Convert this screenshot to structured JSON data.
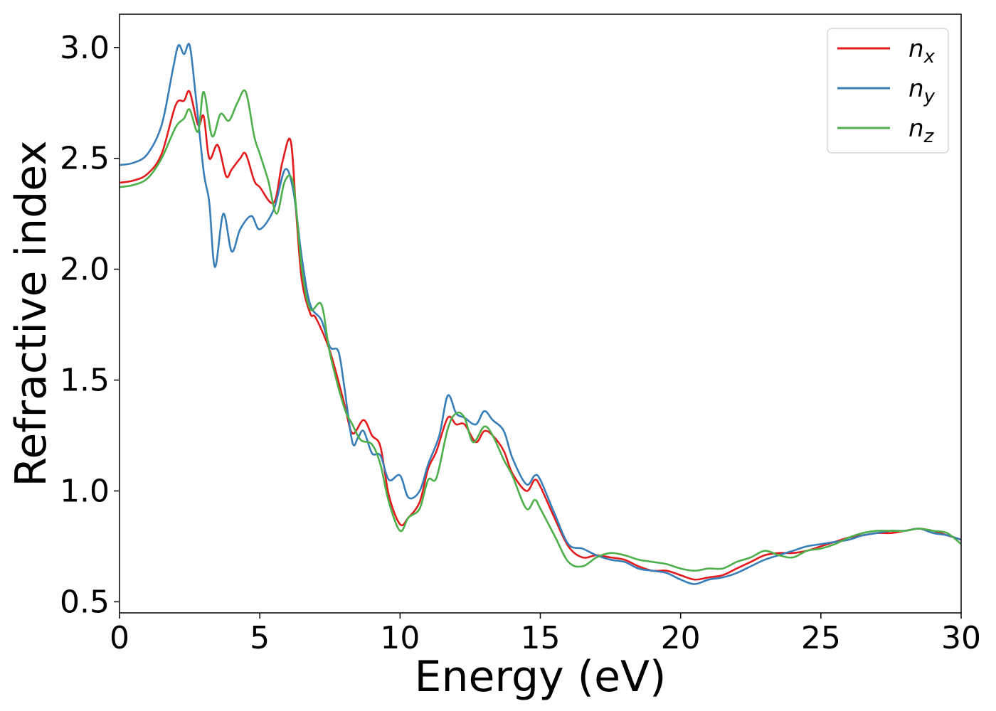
{
  "chart_data": {
    "type": "line",
    "xlabel": "Energy (eV)",
    "ylabel": "Refractive index",
    "xlim": [
      0,
      30
    ],
    "ylim": [
      0.45,
      3.15
    ],
    "xticks": [
      "0",
      "5",
      "10",
      "15",
      "20",
      "25",
      "30"
    ],
    "yticks": [
      "0.5",
      "1.0",
      "1.5",
      "2.0",
      "2.5",
      "3.0"
    ],
    "grid": false,
    "legend_position": "top-right",
    "series": [
      {
        "name": "n",
        "subscript": "x",
        "color": "#e41a1c",
        "points": [
          [
            0,
            2.39
          ],
          [
            0.5,
            2.4
          ],
          [
            1.0,
            2.43
          ],
          [
            1.5,
            2.52
          ],
          [
            2.0,
            2.74
          ],
          [
            2.3,
            2.76
          ],
          [
            2.5,
            2.8
          ],
          [
            2.8,
            2.65
          ],
          [
            3.0,
            2.69
          ],
          [
            3.2,
            2.5
          ],
          [
            3.5,
            2.56
          ],
          [
            3.8,
            2.42
          ],
          [
            4.0,
            2.45
          ],
          [
            4.3,
            2.5
          ],
          [
            4.5,
            2.52
          ],
          [
            4.8,
            2.4
          ],
          [
            5.0,
            2.37
          ],
          [
            5.5,
            2.3
          ],
          [
            5.8,
            2.48
          ],
          [
            6.1,
            2.58
          ],
          [
            6.3,
            2.25
          ],
          [
            6.5,
            1.95
          ],
          [
            6.8,
            1.8
          ],
          [
            7.0,
            1.78
          ],
          [
            7.5,
            1.63
          ],
          [
            8.0,
            1.4
          ],
          [
            8.3,
            1.26
          ],
          [
            8.7,
            1.32
          ],
          [
            9.0,
            1.25
          ],
          [
            9.3,
            1.2
          ],
          [
            9.6,
            0.98
          ],
          [
            10.0,
            0.85
          ],
          [
            10.3,
            0.88
          ],
          [
            10.7,
            0.95
          ],
          [
            11.0,
            1.1
          ],
          [
            11.3,
            1.18
          ],
          [
            11.7,
            1.33
          ],
          [
            12.0,
            1.3
          ],
          [
            12.3,
            1.3
          ],
          [
            12.7,
            1.22
          ],
          [
            13.0,
            1.27
          ],
          [
            13.3,
            1.25
          ],
          [
            13.7,
            1.18
          ],
          [
            14.0,
            1.08
          ],
          [
            14.5,
            1.0
          ],
          [
            14.8,
            1.05
          ],
          [
            15.0,
            1.02
          ],
          [
            15.5,
            0.88
          ],
          [
            16.0,
            0.75
          ],
          [
            16.5,
            0.7
          ],
          [
            17.0,
            0.71
          ],
          [
            17.5,
            0.7
          ],
          [
            18.0,
            0.69
          ],
          [
            18.5,
            0.66
          ],
          [
            19.0,
            0.64
          ],
          [
            19.5,
            0.64
          ],
          [
            20.0,
            0.62
          ],
          [
            20.5,
            0.6
          ],
          [
            21.0,
            0.61
          ],
          [
            21.5,
            0.62
          ],
          [
            22.0,
            0.65
          ],
          [
            22.5,
            0.68
          ],
          [
            23.0,
            0.71
          ],
          [
            23.5,
            0.72
          ],
          [
            24.0,
            0.72
          ],
          [
            24.5,
            0.73
          ],
          [
            25.0,
            0.75
          ],
          [
            25.5,
            0.77
          ],
          [
            26.0,
            0.79
          ],
          [
            26.5,
            0.8
          ],
          [
            27.0,
            0.81
          ],
          [
            27.5,
            0.81
          ],
          [
            28.0,
            0.82
          ],
          [
            28.5,
            0.83
          ],
          [
            29.0,
            0.82
          ],
          [
            29.5,
            0.8
          ],
          [
            30.0,
            0.78
          ]
        ]
      },
      {
        "name": "n",
        "subscript": "y",
        "color": "#377eb8",
        "points": [
          [
            0,
            2.47
          ],
          [
            0.5,
            2.48
          ],
          [
            1.0,
            2.52
          ],
          [
            1.5,
            2.65
          ],
          [
            1.9,
            2.9
          ],
          [
            2.1,
            3.01
          ],
          [
            2.3,
            2.97
          ],
          [
            2.5,
            3.01
          ],
          [
            2.7,
            2.8
          ],
          [
            3.0,
            2.44
          ],
          [
            3.2,
            2.3
          ],
          [
            3.4,
            2.01
          ],
          [
            3.7,
            2.25
          ],
          [
            4.0,
            2.08
          ],
          [
            4.3,
            2.18
          ],
          [
            4.7,
            2.24
          ],
          [
            5.0,
            2.18
          ],
          [
            5.5,
            2.27
          ],
          [
            5.9,
            2.45
          ],
          [
            6.2,
            2.35
          ],
          [
            6.5,
            2.05
          ],
          [
            6.8,
            1.84
          ],
          [
            7.2,
            1.77
          ],
          [
            7.5,
            1.65
          ],
          [
            7.8,
            1.63
          ],
          [
            8.0,
            1.48
          ],
          [
            8.3,
            1.22
          ],
          [
            8.5,
            1.24
          ],
          [
            8.7,
            1.27
          ],
          [
            9.0,
            1.17
          ],
          [
            9.3,
            1.16
          ],
          [
            9.6,
            1.05
          ],
          [
            10.0,
            1.07
          ],
          [
            10.3,
            0.97
          ],
          [
            10.7,
            1.0
          ],
          [
            11.0,
            1.12
          ],
          [
            11.4,
            1.25
          ],
          [
            11.7,
            1.43
          ],
          [
            12.0,
            1.35
          ],
          [
            12.3,
            1.33
          ],
          [
            12.7,
            1.3
          ],
          [
            13.0,
            1.36
          ],
          [
            13.3,
            1.32
          ],
          [
            13.7,
            1.27
          ],
          [
            14.0,
            1.15
          ],
          [
            14.5,
            1.03
          ],
          [
            14.8,
            1.07
          ],
          [
            15.0,
            1.05
          ],
          [
            15.5,
            0.9
          ],
          [
            16.0,
            0.76
          ],
          [
            16.5,
            0.74
          ],
          [
            17.0,
            0.71
          ],
          [
            17.5,
            0.69
          ],
          [
            18.0,
            0.68
          ],
          [
            18.5,
            0.65
          ],
          [
            19.0,
            0.64
          ],
          [
            19.5,
            0.63
          ],
          [
            20.0,
            0.6
          ],
          [
            20.5,
            0.58
          ],
          [
            21.0,
            0.6
          ],
          [
            21.5,
            0.61
          ],
          [
            22.0,
            0.63
          ],
          [
            22.5,
            0.66
          ],
          [
            23.0,
            0.69
          ],
          [
            23.5,
            0.71
          ],
          [
            24.0,
            0.73
          ],
          [
            24.5,
            0.75
          ],
          [
            25.0,
            0.76
          ],
          [
            25.5,
            0.77
          ],
          [
            26.0,
            0.78
          ],
          [
            26.5,
            0.8
          ],
          [
            27.0,
            0.81
          ],
          [
            27.5,
            0.82
          ],
          [
            28.0,
            0.82
          ],
          [
            28.5,
            0.83
          ],
          [
            29.0,
            0.81
          ],
          [
            29.5,
            0.8
          ],
          [
            30.0,
            0.78
          ]
        ]
      },
      {
        "name": "n",
        "subscript": "z",
        "color": "#4daf4a",
        "points": [
          [
            0,
            2.37
          ],
          [
            0.5,
            2.38
          ],
          [
            1.0,
            2.41
          ],
          [
            1.5,
            2.5
          ],
          [
            2.0,
            2.64
          ],
          [
            2.3,
            2.68
          ],
          [
            2.5,
            2.72
          ],
          [
            2.8,
            2.62
          ],
          [
            3.0,
            2.8
          ],
          [
            3.3,
            2.6
          ],
          [
            3.6,
            2.7
          ],
          [
            3.9,
            2.67
          ],
          [
            4.2,
            2.75
          ],
          [
            4.5,
            2.8
          ],
          [
            4.8,
            2.6
          ],
          [
            5.0,
            2.52
          ],
          [
            5.3,
            2.4
          ],
          [
            5.6,
            2.25
          ],
          [
            5.9,
            2.4
          ],
          [
            6.2,
            2.38
          ],
          [
            6.5,
            2.0
          ],
          [
            6.8,
            1.82
          ],
          [
            7.2,
            1.84
          ],
          [
            7.5,
            1.62
          ],
          [
            8.0,
            1.38
          ],
          [
            8.3,
            1.3
          ],
          [
            8.6,
            1.23
          ],
          [
            9.0,
            1.21
          ],
          [
            9.3,
            1.12
          ],
          [
            9.6,
            0.95
          ],
          [
            10.0,
            0.82
          ],
          [
            10.3,
            0.88
          ],
          [
            10.7,
            0.92
          ],
          [
            11.0,
            1.05
          ],
          [
            11.3,
            1.06
          ],
          [
            11.7,
            1.28
          ],
          [
            12.0,
            1.35
          ],
          [
            12.3,
            1.33
          ],
          [
            12.6,
            1.22
          ],
          [
            13.0,
            1.29
          ],
          [
            13.3,
            1.25
          ],
          [
            13.7,
            1.14
          ],
          [
            14.0,
            1.07
          ],
          [
            14.5,
            0.92
          ],
          [
            14.8,
            0.96
          ],
          [
            15.0,
            0.92
          ],
          [
            15.5,
            0.8
          ],
          [
            16.0,
            0.68
          ],
          [
            16.5,
            0.66
          ],
          [
            17.0,
            0.7
          ],
          [
            17.5,
            0.72
          ],
          [
            18.0,
            0.71
          ],
          [
            18.5,
            0.69
          ],
          [
            19.0,
            0.68
          ],
          [
            19.5,
            0.67
          ],
          [
            20.0,
            0.65
          ],
          [
            20.5,
            0.64
          ],
          [
            21.0,
            0.65
          ],
          [
            21.5,
            0.65
          ],
          [
            22.0,
            0.68
          ],
          [
            22.5,
            0.7
          ],
          [
            23.0,
            0.73
          ],
          [
            23.5,
            0.71
          ],
          [
            24.0,
            0.7
          ],
          [
            24.5,
            0.73
          ],
          [
            25.0,
            0.74
          ],
          [
            25.5,
            0.76
          ],
          [
            26.0,
            0.79
          ],
          [
            26.5,
            0.81
          ],
          [
            27.0,
            0.82
          ],
          [
            27.5,
            0.82
          ],
          [
            28.0,
            0.82
          ],
          [
            28.5,
            0.83
          ],
          [
            29.0,
            0.82
          ],
          [
            29.5,
            0.81
          ],
          [
            30.0,
            0.76
          ]
        ]
      }
    ]
  }
}
